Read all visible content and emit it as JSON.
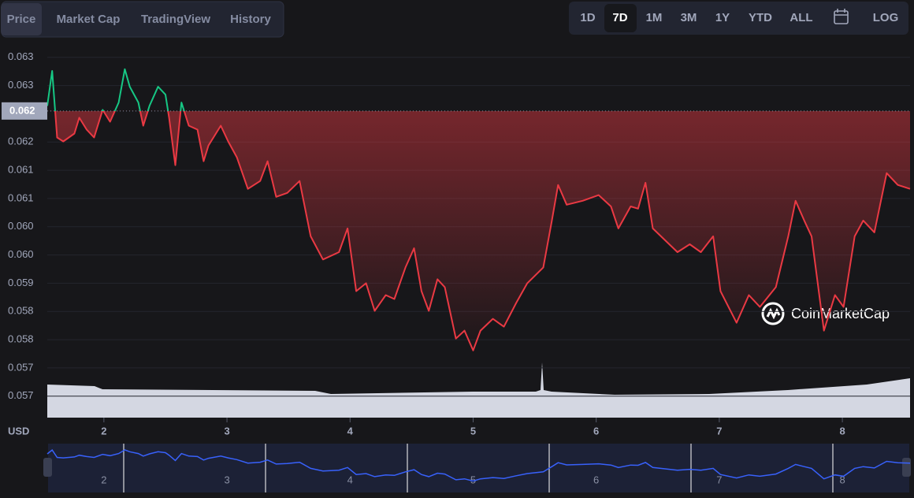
{
  "tabs": [
    "Price",
    "Market Cap",
    "TradingView",
    "History"
  ],
  "active_tab": 0,
  "ranges": [
    "1D",
    "7D",
    "1M",
    "3M",
    "1Y",
    "YTD",
    "ALL"
  ],
  "active_range": 1,
  "log_button": "LOG",
  "watermark": "CoinMarketCap",
  "chart_data": {
    "type": "line",
    "y_axis_label": "USD",
    "x": [
      1.54,
      1.58,
      1.62,
      1.67,
      1.76,
      1.8,
      1.86,
      1.92,
      1.99,
      2.05,
      2.12,
      2.17,
      2.21,
      2.28,
      2.32,
      2.37,
      2.44,
      2.5,
      2.53,
      2.58,
      2.63,
      2.69,
      2.76,
      2.81,
      2.85,
      2.95,
      3.01,
      3.08,
      3.17,
      3.27,
      3.33,
      3.4,
      3.49,
      3.59,
      3.68,
      3.78,
      3.91,
      3.98,
      4.05,
      4.13,
      4.2,
      4.29,
      4.36,
      4.45,
      4.52,
      4.58,
      4.64,
      4.71,
      4.77,
      4.86,
      4.93,
      5.0,
      5.06,
      5.16,
      5.25,
      5.35,
      5.44,
      5.57,
      5.64,
      5.69,
      5.76,
      5.89,
      6.02,
      6.12,
      6.18,
      6.28,
      6.34,
      6.4,
      6.46,
      6.56,
      6.66,
      6.76,
      6.85,
      6.95,
      7.01,
      7.14,
      7.24,
      7.33,
      7.46,
      7.56,
      7.62,
      7.69,
      7.75,
      7.85,
      7.94,
      8.01,
      8.1,
      8.17,
      8.26,
      8.36,
      8.45,
      8.55
    ],
    "series": [
      {
        "name": "Price",
        "up_color": "#16c784",
        "down_color": "#ea3943",
        "values": [
          0.06214,
          0.06276,
          0.06158,
          0.06151,
          0.06165,
          0.06193,
          0.06172,
          0.06158,
          0.06207,
          0.06186,
          0.0622,
          0.06279,
          0.06248,
          0.0622,
          0.06179,
          0.06214,
          0.06248,
          0.06234,
          0.06193,
          0.06109,
          0.0622,
          0.06179,
          0.06172,
          0.06116,
          0.06144,
          0.06179,
          0.06151,
          0.06123,
          0.06067,
          0.06081,
          0.06116,
          0.06053,
          0.0606,
          0.06081,
          0.05983,
          0.05942,
          0.05955,
          0.05997,
          0.05886,
          0.059,
          0.05851,
          0.05879,
          0.05872,
          0.05928,
          0.05962,
          0.05886,
          0.05851,
          0.05907,
          0.05893,
          0.05802,
          0.05816,
          0.05781,
          0.05816,
          0.05837,
          0.05823,
          0.05865,
          0.059,
          0.05928,
          0.06011,
          0.06074,
          0.06039,
          0.06046,
          0.06056,
          0.06036,
          0.05997,
          0.06036,
          0.06032,
          0.06078,
          0.05997,
          0.05976,
          0.05955,
          0.05969,
          0.05955,
          0.05983,
          0.05886,
          0.0583,
          0.05879,
          0.05858,
          0.05893,
          0.05983,
          0.06046,
          0.06011,
          0.05983,
          0.05816,
          0.05879,
          0.05858,
          0.05983,
          0.06011,
          0.0599,
          0.06095,
          0.06074,
          0.06067
        ]
      }
    ],
    "reference_line": {
      "value": 0.06205,
      "label": "0.062"
    },
    "xlim": [
      1.54,
      8.55
    ],
    "xticks": [
      2,
      3,
      4,
      5,
      6,
      7,
      8
    ],
    "ylim": [
      0.05662,
      0.06315
    ],
    "yticks": [
      {
        "value": 0.063,
        "label": "0.063"
      },
      {
        "value": 0.0625,
        "label": "0.063"
      },
      {
        "value": 0.0615,
        "label": "0.062"
      },
      {
        "value": 0.061,
        "label": "0.061"
      },
      {
        "value": 0.0605,
        "label": "0.061"
      },
      {
        "value": 0.06,
        "label": "0.060"
      },
      {
        "value": 0.0595,
        "label": "0.060"
      },
      {
        "value": 0.059,
        "label": "0.059"
      },
      {
        "value": 0.0585,
        "label": "0.058"
      },
      {
        "value": 0.058,
        "label": "0.058"
      },
      {
        "value": 0.0575,
        "label": "0.057"
      },
      {
        "value": 0.057,
        "label": "0.057"
      }
    ],
    "grid": true
  }
}
